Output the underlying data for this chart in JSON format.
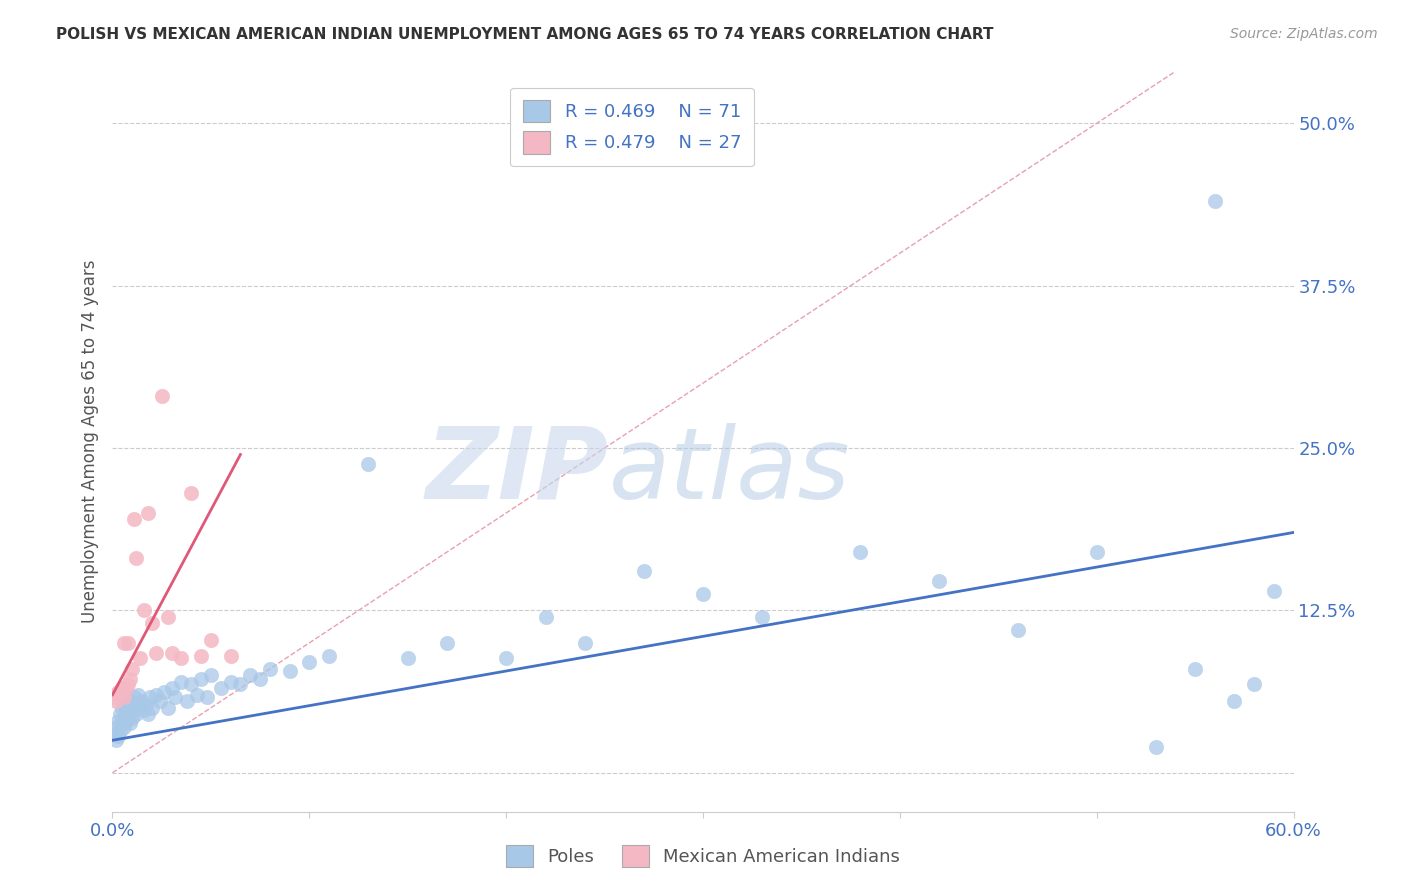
{
  "title": "POLISH VS MEXICAN AMERICAN INDIAN UNEMPLOYMENT AMONG AGES 65 TO 74 YEARS CORRELATION CHART",
  "source": "Source: ZipAtlas.com",
  "ylabel": "Unemployment Among Ages 65 to 74 years",
  "xlim": [
    0.0,
    0.6
  ],
  "ylim": [
    -0.03,
    0.54
  ],
  "grid_color": "#cccccc",
  "background_color": "#ffffff",
  "legend_r1": "R = 0.469",
  "legend_n1": "N = 71",
  "legend_r2": "R = 0.479",
  "legend_n2": "N = 27",
  "blue_color": "#a8c8e8",
  "blue_line_color": "#4472c4",
  "pink_color": "#f4b8c4",
  "pink_line_color": "#e05878",
  "text_blue": "#4472c4",
  "poles_label": "Poles",
  "mexican_label": "Mexican American Indians",
  "poles_x": [
    0.001,
    0.002,
    0.002,
    0.003,
    0.003,
    0.004,
    0.004,
    0.005,
    0.005,
    0.006,
    0.006,
    0.007,
    0.007,
    0.008,
    0.008,
    0.009,
    0.009,
    0.01,
    0.01,
    0.011,
    0.011,
    0.012,
    0.013,
    0.014,
    0.015,
    0.016,
    0.017,
    0.018,
    0.019,
    0.02,
    0.022,
    0.024,
    0.026,
    0.028,
    0.03,
    0.032,
    0.035,
    0.038,
    0.04,
    0.043,
    0.045,
    0.048,
    0.05,
    0.055,
    0.06,
    0.065,
    0.07,
    0.075,
    0.08,
    0.09,
    0.1,
    0.11,
    0.13,
    0.15,
    0.17,
    0.2,
    0.22,
    0.24,
    0.27,
    0.3,
    0.33,
    0.38,
    0.42,
    0.46,
    0.5,
    0.53,
    0.55,
    0.57,
    0.58,
    0.59,
    0.56
  ],
  "poles_y": [
    0.03,
    0.025,
    0.035,
    0.028,
    0.04,
    0.032,
    0.045,
    0.038,
    0.05,
    0.042,
    0.035,
    0.048,
    0.04,
    0.052,
    0.045,
    0.038,
    0.055,
    0.048,
    0.042,
    0.058,
    0.052,
    0.045,
    0.06,
    0.05,
    0.055,
    0.048,
    0.052,
    0.045,
    0.058,
    0.05,
    0.06,
    0.055,
    0.062,
    0.05,
    0.065,
    0.058,
    0.07,
    0.055,
    0.068,
    0.06,
    0.072,
    0.058,
    0.075,
    0.065,
    0.07,
    0.068,
    0.075,
    0.072,
    0.08,
    0.078,
    0.085,
    0.09,
    0.238,
    0.088,
    0.1,
    0.088,
    0.12,
    0.1,
    0.155,
    0.138,
    0.12,
    0.17,
    0.148,
    0.11,
    0.17,
    0.02,
    0.08,
    0.055,
    0.068,
    0.14,
    0.44
  ],
  "mex_x": [
    0.001,
    0.002,
    0.003,
    0.004,
    0.005,
    0.006,
    0.006,
    0.007,
    0.008,
    0.008,
    0.009,
    0.01,
    0.011,
    0.012,
    0.014,
    0.016,
    0.018,
    0.02,
    0.022,
    0.025,
    0.028,
    0.03,
    0.035,
    0.04,
    0.045,
    0.05,
    0.06
  ],
  "mex_y": [
    0.058,
    0.055,
    0.062,
    0.06,
    0.065,
    0.1,
    0.058,
    0.065,
    0.1,
    0.068,
    0.072,
    0.08,
    0.195,
    0.165,
    0.088,
    0.125,
    0.2,
    0.115,
    0.092,
    0.29,
    0.12,
    0.092,
    0.088,
    0.215,
    0.09,
    0.102,
    0.09
  ],
  "blue_line_x": [
    0.0,
    0.6
  ],
  "blue_line_y": [
    0.025,
    0.185
  ],
  "pink_line_x": [
    0.0,
    0.065
  ],
  "pink_line_y": [
    0.06,
    0.245
  ],
  "diag_line_x": [
    0.0,
    0.54
  ],
  "diag_line_y": [
    0.0,
    0.54
  ]
}
